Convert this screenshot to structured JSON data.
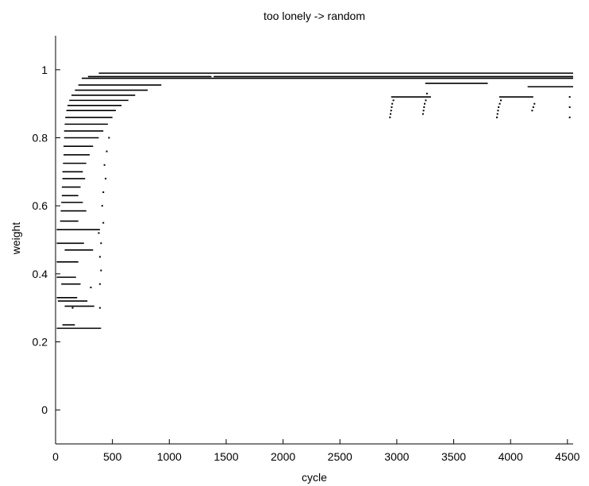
{
  "chart_data": {
    "type": "scatter",
    "title": "too lonely -> random",
    "xlabel": "cycle",
    "ylabel": "weight",
    "xlim": [
      0,
      4550
    ],
    "ylim": [
      -0.1,
      1.1
    ],
    "xticks": [
      0,
      500,
      1000,
      1500,
      2000,
      2500,
      3000,
      3500,
      4000,
      4500
    ],
    "yticks": [
      0,
      0.2,
      0.4,
      0.6,
      0.8,
      1
    ],
    "grid": false,
    "legend": "none",
    "series": [
      {
        "color": "#000000",
        "style": "dense-dots",
        "segments": [
          {
            "x": [
              380,
              4550
            ],
            "y": 0.99
          },
          {
            "x": [
              285,
              1370
            ],
            "y": 0.98
          },
          {
            "x": [
              1390,
              4550
            ],
            "y": 0.98
          },
          {
            "x": [
              230,
              4550
            ],
            "y": 0.975
          },
          {
            "x": [
              200,
              930
            ],
            "y": 0.955
          },
          {
            "x": [
              170,
              810
            ],
            "y": 0.94
          },
          {
            "x": [
              140,
              700
            ],
            "y": 0.925
          },
          {
            "x": [
              120,
              640
            ],
            "y": 0.91
          },
          {
            "x": [
              105,
              580
            ],
            "y": 0.895
          },
          {
            "x": [
              95,
              530
            ],
            "y": 0.88
          },
          {
            "x": [
              85,
              500
            ],
            "y": 0.86
          },
          {
            "x": [
              80,
              460
            ],
            "y": 0.84
          },
          {
            "x": [
              75,
              420
            ],
            "y": 0.82
          },
          {
            "x": [
              75,
              380
            ],
            "y": 0.8
          },
          {
            "x": [
              70,
              330
            ],
            "y": 0.775
          },
          {
            "x": [
              70,
              300
            ],
            "y": 0.75
          },
          {
            "x": [
              65,
              270
            ],
            "y": 0.725
          },
          {
            "x": [
              60,
              240
            ],
            "y": 0.7
          },
          {
            "x": [
              60,
              260
            ],
            "y": 0.68
          },
          {
            "x": [
              55,
              220
            ],
            "y": 0.655
          },
          {
            "x": [
              55,
              200
            ],
            "y": 0.63
          },
          {
            "x": [
              50,
              240
            ],
            "y": 0.61
          },
          {
            "x": [
              45,
              270
            ],
            "y": 0.585
          },
          {
            "x": [
              40,
              200
            ],
            "y": 0.555
          },
          {
            "x": [
              10,
              390
            ],
            "y": 0.53
          },
          {
            "x": [
              10,
              250
            ],
            "y": 0.49
          },
          {
            "x": [
              80,
              330
            ],
            "y": 0.47
          },
          {
            "x": [
              10,
              200
            ],
            "y": 0.435
          },
          {
            "x": [
              10,
              180
            ],
            "y": 0.39
          },
          {
            "x": [
              50,
              220
            ],
            "y": 0.37
          },
          {
            "x": [
              10,
              190
            ],
            "y": 0.33
          },
          {
            "x": [
              20,
              280
            ],
            "y": 0.32
          },
          {
            "x": [
              80,
              340
            ],
            "y": 0.305
          },
          {
            "x": [
              60,
              170
            ],
            "y": 0.25
          },
          {
            "x": [
              10,
              400
            ],
            "y": 0.24
          },
          {
            "x": [
              2950,
              3300
            ],
            "y": 0.92
          },
          {
            "x": [
              3250,
              3800
            ],
            "y": 0.96
          },
          {
            "x": [
              3900,
              4200
            ],
            "y": 0.92
          },
          {
            "x": [
              4150,
              4550
            ],
            "y": 0.95
          }
        ],
        "points": [
          {
            "x": 2940,
            "y": 0.86
          },
          {
            "x": 2945,
            "y": 0.87
          },
          {
            "x": 2950,
            "y": 0.88
          },
          {
            "x": 2955,
            "y": 0.89
          },
          {
            "x": 2960,
            "y": 0.9
          },
          {
            "x": 2970,
            "y": 0.91
          },
          {
            "x": 3230,
            "y": 0.87
          },
          {
            "x": 3235,
            "y": 0.88
          },
          {
            "x": 3240,
            "y": 0.89
          },
          {
            "x": 3245,
            "y": 0.9
          },
          {
            "x": 3255,
            "y": 0.91
          },
          {
            "x": 3265,
            "y": 0.93
          },
          {
            "x": 3880,
            "y": 0.86
          },
          {
            "x": 3885,
            "y": 0.87
          },
          {
            "x": 3890,
            "y": 0.88
          },
          {
            "x": 3895,
            "y": 0.89
          },
          {
            "x": 3905,
            "y": 0.9
          },
          {
            "x": 3915,
            "y": 0.91
          },
          {
            "x": 4190,
            "y": 0.88
          },
          {
            "x": 4200,
            "y": 0.89
          },
          {
            "x": 4210,
            "y": 0.9
          },
          {
            "x": 4520,
            "y": 0.86
          },
          {
            "x": 4520,
            "y": 0.89
          },
          {
            "x": 4520,
            "y": 0.92
          },
          {
            "x": 150,
            "y": 0.3
          },
          {
            "x": 390,
            "y": 0.3
          },
          {
            "x": 310,
            "y": 0.36
          },
          {
            "x": 390,
            "y": 0.37
          },
          {
            "x": 400,
            "y": 0.41
          },
          {
            "x": 390,
            "y": 0.45
          },
          {
            "x": 400,
            "y": 0.49
          },
          {
            "x": 380,
            "y": 0.52
          },
          {
            "x": 420,
            "y": 0.55
          },
          {
            "x": 410,
            "y": 0.6
          },
          {
            "x": 420,
            "y": 0.64
          },
          {
            "x": 440,
            "y": 0.68
          },
          {
            "x": 430,
            "y": 0.72
          },
          {
            "x": 450,
            "y": 0.76
          },
          {
            "x": 470,
            "y": 0.8
          }
        ]
      }
    ]
  }
}
